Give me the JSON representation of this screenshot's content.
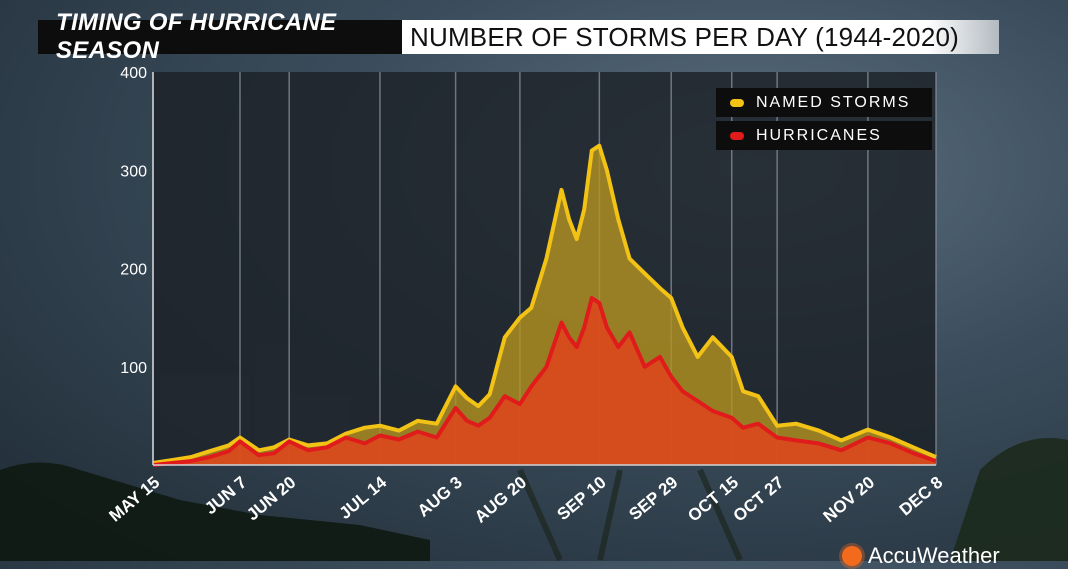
{
  "header": {
    "left_title": "TIMING OF HURRICANE SEASON",
    "right_title": "NUMBER OF STORMS PER DAY (1944-2020)"
  },
  "brand": {
    "name": "AccuWeather",
    "icon": "sun-logo-icon",
    "color": "#f26b1d"
  },
  "colors": {
    "named_storms": "#f2c215",
    "named_storms_fill": "#b59420",
    "hurricanes": "#e01b1b",
    "hurricanes_fill": "#e0441c",
    "plot_background": "#1c2127",
    "gridline": "#8a9099"
  },
  "chart_data": {
    "type": "area",
    "title": "NUMBER OF STORMS PER DAY (1944-2020)",
    "xlabel": "",
    "ylabel": "",
    "ylim": [
      0,
      400
    ],
    "yticks": [
      100,
      200,
      300,
      400
    ],
    "grid": "vertical gridlines at labeled dates",
    "legend_position": "top-right",
    "categories": [
      "MAY 15",
      "JUN 7",
      "JUN 20",
      "JUL 14",
      "AUG 3",
      "AUG 20",
      "SEP 10",
      "SEP 29",
      "OCT 15",
      "OCT 27",
      "NOV 20",
      "DEC 8"
    ],
    "x": [
      "May 15",
      "May 20",
      "May 25",
      "May 30",
      "Jun 4",
      "Jun 7",
      "Jun 12",
      "Jun 16",
      "Jun 20",
      "Jun 25",
      "Jun 30",
      "Jul 5",
      "Jul 10",
      "Jul 14",
      "Jul 19",
      "Jul 24",
      "Jul 29",
      "Aug 3",
      "Aug 6",
      "Aug 9",
      "Aug 12",
      "Aug 16",
      "Aug 20",
      "Aug 23",
      "Aug 27",
      "Aug 31",
      "Sep 2",
      "Sep 4",
      "Sep 6",
      "Sep 8",
      "Sep 10",
      "Sep 12",
      "Sep 15",
      "Sep 18",
      "Sep 22",
      "Sep 26",
      "Sep 29",
      "Oct 2",
      "Oct 6",
      "Oct 10",
      "Oct 15",
      "Oct 18",
      "Oct 22",
      "Oct 27",
      "Nov 1",
      "Nov 7",
      "Nov 13",
      "Nov 20",
      "Nov 26",
      "Dec 2",
      "Dec 8"
    ],
    "series": [
      {
        "name": "NAMED STORMS",
        "values": [
          2,
          5,
          8,
          14,
          20,
          28,
          15,
          18,
          26,
          20,
          22,
          32,
          38,
          40,
          35,
          45,
          42,
          80,
          68,
          60,
          72,
          130,
          150,
          160,
          210,
          280,
          250,
          230,
          260,
          320,
          325,
          300,
          250,
          210,
          195,
          180,
          170,
          140,
          110,
          130,
          110,
          75,
          70,
          40,
          42,
          35,
          25,
          36,
          28,
          18,
          8
        ]
      },
      {
        "name": "HURRICANES",
        "values": [
          0,
          2,
          4,
          8,
          14,
          24,
          10,
          12,
          24,
          15,
          18,
          28,
          22,
          30,
          26,
          34,
          28,
          58,
          45,
          40,
          48,
          70,
          62,
          80,
          100,
          145,
          130,
          120,
          140,
          170,
          165,
          140,
          120,
          135,
          100,
          110,
          90,
          75,
          65,
          55,
          48,
          38,
          42,
          28,
          25,
          22,
          15,
          28,
          22,
          12,
          4
        ]
      }
    ]
  },
  "legend": {
    "items": [
      {
        "label": "NAMED STORMS",
        "color": "#f2c215"
      },
      {
        "label": "HURRICANES",
        "color": "#e01b1b"
      }
    ]
  }
}
